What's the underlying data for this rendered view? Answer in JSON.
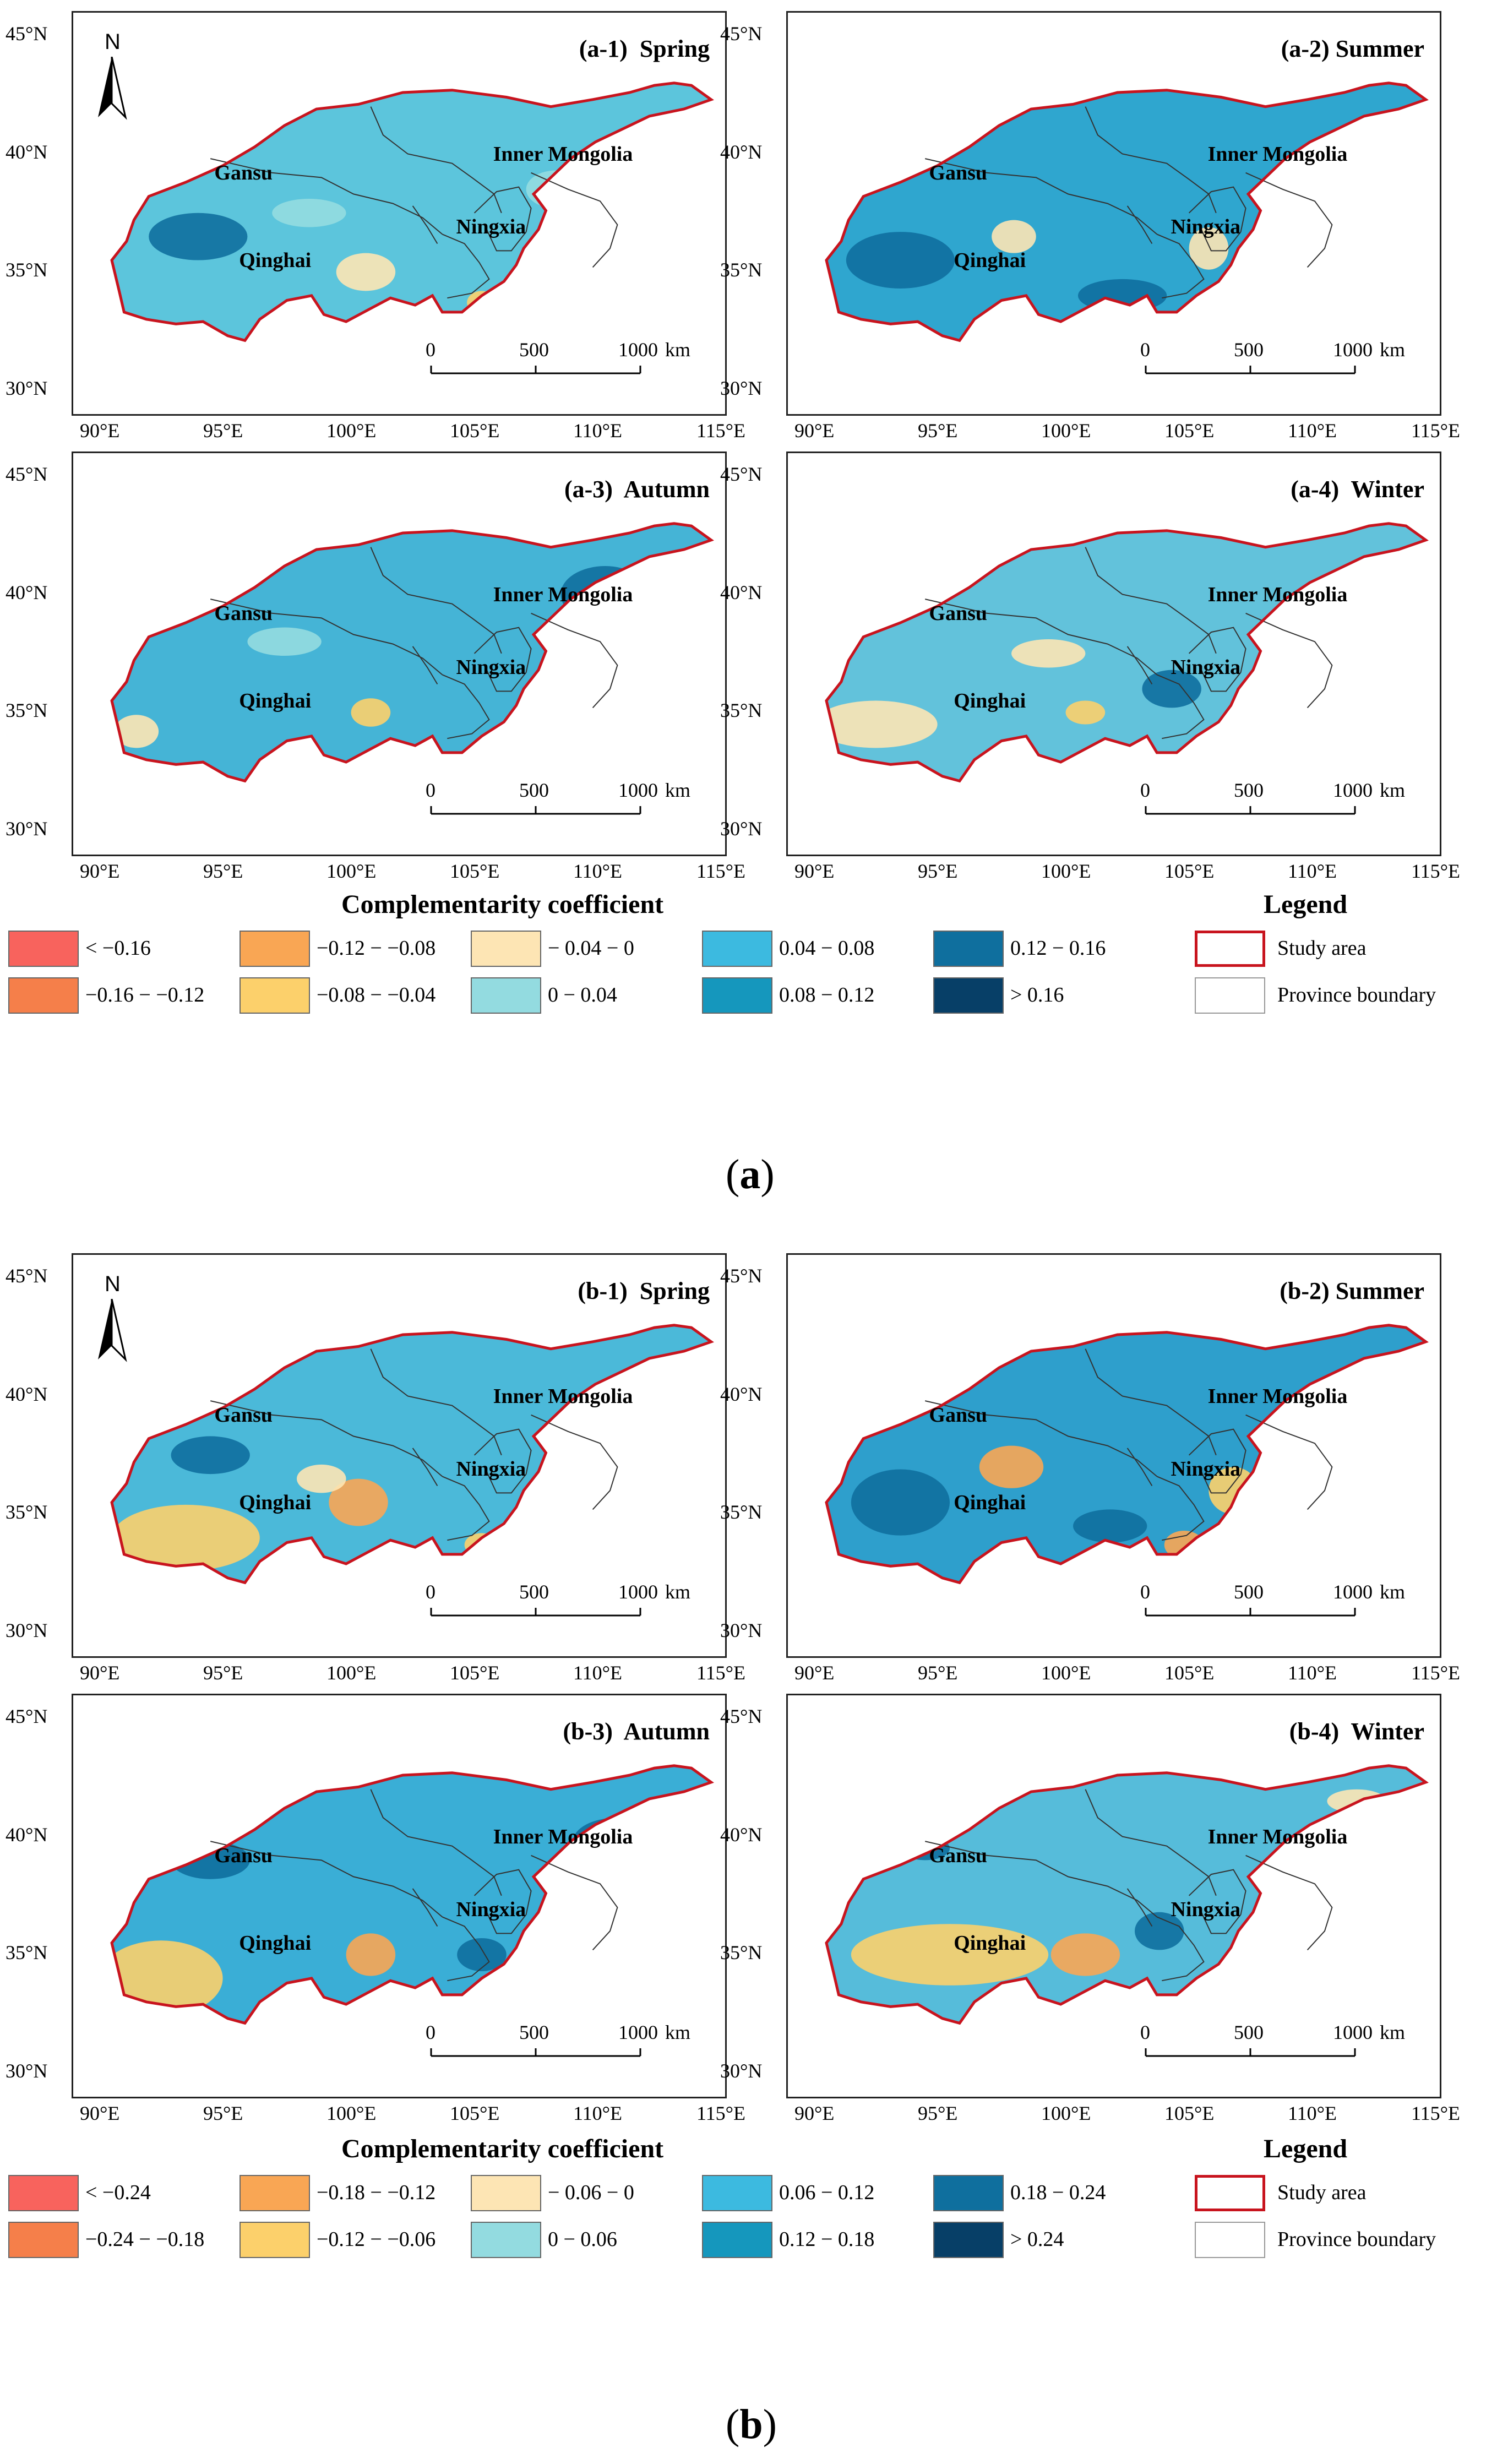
{
  "figure_a": {
    "caption_open": "(",
    "caption_letter": "a",
    "caption_close": ")",
    "panels": [
      {
        "title": "(a-1)  Spring",
        "fill": "#5cc5dc"
      },
      {
        "title": "(a-2) Summer",
        "fill": "#2fa6cf"
      },
      {
        "title": "(a-3)  Autumn",
        "fill": "#45b4d6"
      },
      {
        "title": "(a-4)  Winter",
        "fill": "#62c2db"
      }
    ],
    "legend": {
      "title": "Complementarity coefficient",
      "items": [
        {
          "label": "< −0.16",
          "color": "#f8635d"
        },
        {
          "label": "−0.16 − −0.12",
          "color": "#f57f4a"
        },
        {
          "label": "−0.12 − −0.08",
          "color": "#f9a654"
        },
        {
          "label": "−0.08 − −0.04",
          "color": "#fcd06b"
        },
        {
          "label": "− 0.04 − 0",
          "color": "#fde5b4"
        },
        {
          "label": "0 − 0.04",
          "color": "#93dbe0"
        },
        {
          "label": "0.04 − 0.08",
          "color": "#3cbae0"
        },
        {
          "label": "0.08 − 0.12",
          "color": "#1597bd"
        },
        {
          "label": "0.12 − 0.16",
          "color": "#0f6f9e"
        },
        {
          "label": "> 0.16",
          "color": "#073f67"
        }
      ],
      "key_title": "Legend",
      "study_area": "Study area",
      "province_boundary": "Province boundary"
    }
  },
  "figure_b": {
    "caption_open": "(",
    "caption_letter": "b",
    "caption_close": ")",
    "panels": [
      {
        "title": "(b-1)  Spring",
        "fill": "#4bb9d9"
      },
      {
        "title": "(b-2) Summer",
        "fill": "#2e9fcc"
      },
      {
        "title": "(b-3)  Autumn",
        "fill": "#3aaed6"
      },
      {
        "title": "(b-4)  Winter",
        "fill": "#56bcda"
      }
    ],
    "legend": {
      "title": "Complementarity coefficient",
      "items": [
        {
          "label": "< −0.24",
          "color": "#f8635d"
        },
        {
          "label": "−0.24 − −0.18",
          "color": "#f57f4a"
        },
        {
          "label": "−0.18 − −0.12",
          "color": "#f9a654"
        },
        {
          "label": "−0.12 − −0.06",
          "color": "#fcd06b"
        },
        {
          "label": "− 0.06 − 0",
          "color": "#fde5b4"
        },
        {
          "label": "0 − 0.06",
          "color": "#93dbe0"
        },
        {
          "label": "0.06 − 0.12",
          "color": "#3cbae0"
        },
        {
          "label": "0.12 − 0.18",
          "color": "#1597bd"
        },
        {
          "label": "0.18 − 0.24",
          "color": "#0f6f9e"
        },
        {
          "label": "> 0.24",
          "color": "#073f67"
        }
      ],
      "key_title": "Legend",
      "study_area": "Study area",
      "province_boundary": "Province boundary"
    }
  },
  "map_text": {
    "north": "N",
    "provinces": [
      "Gansu",
      "Inner Mongolia",
      "Ningxia",
      "Qinghai"
    ],
    "lat_ticks": [
      "45°N",
      "40°N",
      "35°N",
      "30°N"
    ],
    "lon_ticks": [
      "90°E",
      "95°E",
      "100°E",
      "105°E",
      "110°E",
      "115°E"
    ],
    "scale_ticks": [
      "0",
      "500",
      "1000"
    ],
    "scale_unit": "km"
  },
  "colors": {
    "study_area_outline": "#c8141e",
    "province_line": "#333333",
    "warm_patch_light": "#fde5b4",
    "warm_patch_mid": "#fcd06b",
    "warm_patch_strong": "#f9a654",
    "cool_patch_dark": "#0f6f9e",
    "cool_patch_light": "#93dbe0"
  }
}
